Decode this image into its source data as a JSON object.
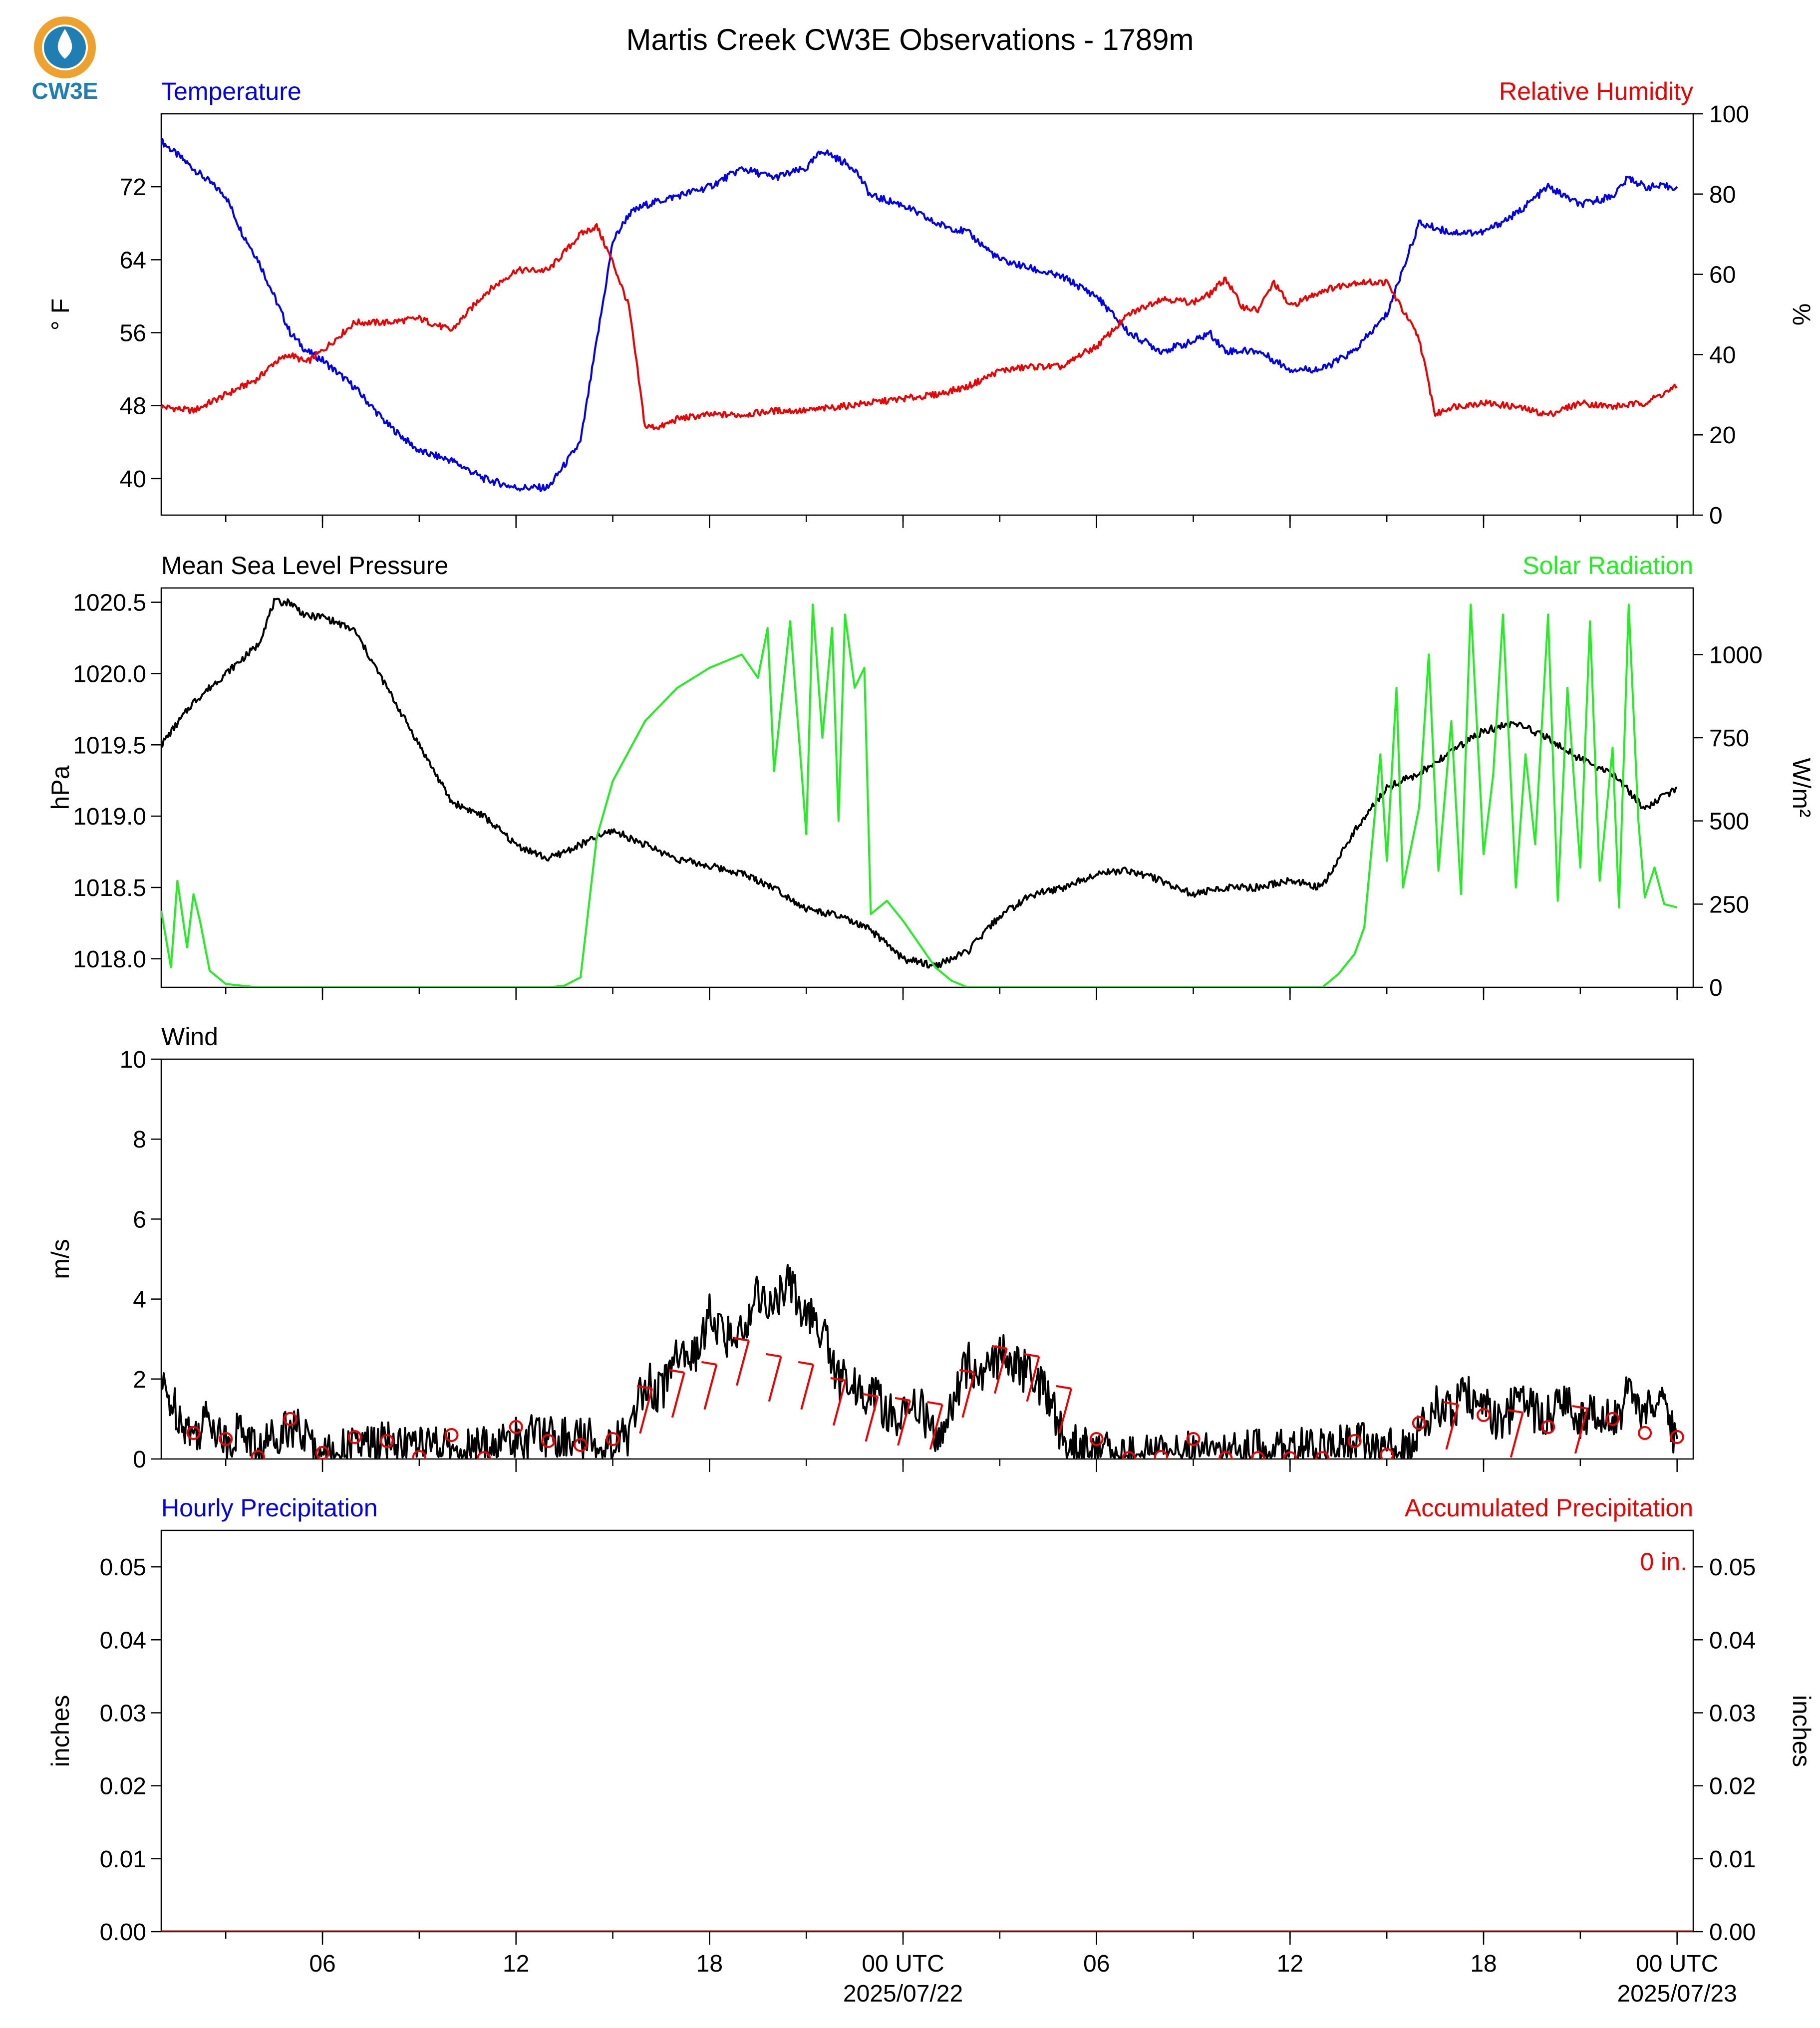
{
  "page": {
    "title": "Martis Creek CW3E Observations - 1789m",
    "logo_text": "CW3E",
    "logo_colors": {
      "ring": "#f0a12b",
      "drop": "#1f7fb5",
      "text": "#1f7fb5"
    }
  },
  "x_axis": {
    "range_hours": [
      0,
      47.5
    ],
    "ticks": [
      {
        "h": 5,
        "label": "06"
      },
      {
        "h": 11,
        "label": "12"
      },
      {
        "h": 17,
        "label": "18"
      },
      {
        "h": 23,
        "label": "00 UTC",
        "sublabel": "2025/07/22"
      },
      {
        "h": 29,
        "label": "06"
      },
      {
        "h": 35,
        "label": "12"
      },
      {
        "h": 41,
        "label": "18"
      },
      {
        "h": 47,
        "label": "00 UTC",
        "sublabel": "2025/07/23"
      }
    ],
    "minor_every_hours": 3
  },
  "chart_data": [
    {
      "type": "line",
      "panel": "temperature-humidity",
      "left_label": "Temperature",
      "right_label": "Relative Humidity",
      "ylabel_left": "° F",
      "ylabel_right": "%",
      "ylim_left": [
        36,
        80
      ],
      "ylim_right": [
        0,
        100
      ],
      "yticks_left": [
        "40",
        "48",
        "56",
        "64",
        "72"
      ],
      "yticks_right": [
        "0",
        "20",
        "40",
        "60",
        "80",
        "100"
      ],
      "series": [
        {
          "name": "Temperature",
          "color": "#0000ee",
          "axis": "left",
          "x": [
            0,
            1,
            2,
            2.5,
            3,
            3.5,
            4,
            4.5,
            5,
            6,
            7,
            8,
            9,
            10,
            11,
            12,
            13,
            14,
            14.5,
            15,
            16,
            17,
            18,
            19,
            20,
            20.5,
            21,
            21.5,
            22,
            23,
            24,
            25,
            26,
            27,
            28,
            29,
            30,
            31,
            32,
            32.5,
            33,
            34,
            35,
            36,
            37,
            38,
            39,
            40,
            41,
            42,
            43,
            44,
            45,
            45.5,
            46,
            47
          ],
          "y": [
            77,
            74,
            71,
            67,
            64,
            60,
            56,
            54,
            53,
            50,
            46,
            43,
            42,
            40,
            39,
            39,
            44,
            66,
            69,
            70,
            71,
            72,
            74,
            73,
            74,
            76,
            75,
            74,
            71,
            70,
            68,
            67,
            64,
            63,
            62,
            60,
            56,
            54,
            55,
            56,
            54,
            54,
            52,
            52,
            54,
            58,
            68,
            67,
            67,
            69,
            72,
            70,
            71,
            73,
            72,
            72
          ]
        },
        {
          "name": "Relative Humidity",
          "color": "#ee0000",
          "axis": "right",
          "x": [
            0,
            1,
            2,
            3,
            3.5,
            4,
            4.5,
            5,
            6,
            7,
            8,
            9,
            10,
            10.5,
            11,
            12,
            13,
            13.5,
            14,
            14.5,
            15,
            15.5,
            16,
            17,
            18,
            19,
            20,
            21,
            22,
            23,
            24,
            25,
            26,
            27,
            28,
            28.5,
            29,
            30,
            31,
            32,
            32.5,
            33,
            33.5,
            34,
            34.5,
            35,
            36,
            37,
            38,
            39,
            39.5,
            40,
            41,
            42,
            43,
            44,
            45,
            46,
            46.5,
            47
          ],
          "y": [
            27,
            26,
            30,
            34,
            38,
            40,
            38,
            41,
            48,
            48,
            49,
            46,
            55,
            58,
            61,
            61,
            70,
            72,
            63,
            52,
            22,
            22,
            24,
            25,
            25,
            26,
            26,
            27,
            28,
            29,
            30,
            32,
            36,
            37,
            37,
            40,
            42,
            50,
            54,
            53,
            55,
            59,
            52,
            51,
            58,
            52,
            56,
            58,
            58,
            44,
            25,
            27,
            28,
            27,
            25,
            28,
            27,
            28,
            30,
            32
          ]
        }
      ]
    },
    {
      "type": "line",
      "panel": "pressure-solar",
      "left_label": "Mean Sea Level Pressure",
      "right_label": "Solar Radiation",
      "ylabel_left": "hPa",
      "ylabel_right": "W/m²",
      "ylim_left": [
        1017.8,
        1020.6
      ],
      "ylim_right": [
        0,
        1200
      ],
      "yticks_left": [
        "1018.0",
        "1018.5",
        "1019.0",
        "1019.5",
        "1020.0",
        "1020.5"
      ],
      "yticks_right": [
        "0",
        "250",
        "500",
        "750",
        "1000"
      ],
      "series": [
        {
          "name": "Mean Sea Level Pressure",
          "color": "#000000",
          "axis": "left",
          "x": [
            0,
            1,
            2,
            3,
            3.5,
            4,
            4.5,
            5,
            6,
            7,
            8,
            9,
            10,
            11,
            12,
            13,
            14,
            15,
            16,
            17,
            18,
            19,
            20,
            21,
            22,
            23,
            24,
            25,
            26,
            27,
            28,
            29,
            30,
            31,
            32,
            33,
            34,
            35,
            36,
            37,
            38,
            39,
            40,
            41,
            42,
            43,
            44,
            45,
            46,
            47
          ],
          "y": [
            1019.5,
            1019.8,
            1020.0,
            1020.2,
            1020.5,
            1020.5,
            1020.4,
            1020.4,
            1020.3,
            1019.9,
            1019.5,
            1019.1,
            1019.0,
            1018.8,
            1018.7,
            1018.8,
            1018.9,
            1018.8,
            1018.7,
            1018.65,
            1018.6,
            1018.5,
            1018.35,
            1018.3,
            1018.2,
            1018.0,
            1017.95,
            1018.05,
            1018.3,
            1018.45,
            1018.5,
            1018.6,
            1018.62,
            1018.55,
            1018.45,
            1018.5,
            1018.5,
            1018.55,
            1018.5,
            1018.9,
            1019.2,
            1019.3,
            1019.45,
            1019.6,
            1019.65,
            1019.55,
            1019.4,
            1019.3,
            1019.05,
            1019.2
          ]
        },
        {
          "name": "Solar Radiation",
          "color": "#22ee22",
          "axis": "right",
          "x": [
            0,
            0.3,
            0.5,
            0.8,
            1.0,
            1.2,
            1.5,
            2,
            3,
            5,
            8,
            11,
            12,
            12.5,
            13,
            13.5,
            14,
            15,
            16,
            17,
            18,
            18.5,
            18.8,
            19,
            19.5,
            20,
            20.2,
            20.5,
            20.8,
            21,
            21.2,
            21.5,
            21.8,
            22,
            22.5,
            23,
            24,
            24.5,
            25,
            26,
            28,
            32,
            34,
            36,
            36.5,
            37,
            37.3,
            37.8,
            38,
            38.3,
            38.5,
            39,
            39.3,
            39.6,
            40,
            40.3,
            40.6,
            41,
            41.3,
            41.6,
            42,
            42.3,
            42.6,
            43,
            43.3,
            43.6,
            44,
            44.3,
            44.6,
            45,
            45.2,
            45.5,
            45.8,
            46,
            46.3,
            46.6,
            47
          ],
          "y": [
            230,
            60,
            320,
            120,
            280,
            200,
            50,
            10,
            0,
            0,
            0,
            0,
            0,
            5,
            30,
            450,
            620,
            800,
            900,
            960,
            1000,
            930,
            1080,
            650,
            1100,
            460,
            1150,
            750,
            1080,
            500,
            1120,
            900,
            960,
            220,
            260,
            200,
            60,
            20,
            0,
            0,
            0,
            0,
            0,
            0,
            40,
            100,
            180,
            700,
            380,
            900,
            300,
            540,
            1000,
            350,
            800,
            280,
            1150,
            400,
            640,
            1120,
            300,
            700,
            430,
            1120,
            260,
            900,
            360,
            1100,
            320,
            720,
            240,
            1150,
            500,
            270,
            360,
            250,
            240
          ]
        }
      ]
    },
    {
      "type": "line",
      "panel": "wind",
      "left_label": "Wind",
      "ylabel_left": "m/s",
      "ylim_left": [
        0,
        10
      ],
      "yticks_left": [
        "0",
        "2",
        "4",
        "6",
        "8",
        "10"
      ],
      "series": [
        {
          "name": "Wind",
          "color": "#000000",
          "axis": "left",
          "x": [
            0,
            0.5,
            1,
            1.5,
            2,
            2.5,
            3,
            3.5,
            4,
            5,
            6,
            7,
            8,
            9,
            10,
            11,
            12,
            13,
            14,
            14.5,
            15,
            15.5,
            16,
            16.5,
            17,
            17.5,
            18,
            18.5,
            19,
            19.5,
            20,
            20.5,
            21,
            21.5,
            22,
            22.5,
            23,
            23.5,
            24,
            24.5,
            25,
            25.5,
            26,
            26.5,
            27,
            27.5,
            28,
            28.5,
            29,
            30,
            31,
            32,
            33,
            34,
            35,
            36,
            37,
            38,
            38.5,
            39,
            39.5,
            40,
            40.5,
            41,
            41.5,
            42,
            42.5,
            43,
            43.5,
            44,
            44.5,
            45,
            45.5,
            46,
            46.5,
            47
          ],
          "y": [
            1.8,
            1.2,
            0.6,
            1.1,
            0.4,
            0.8,
            0.2,
            0.6,
            0.9,
            0.1,
            0.3,
            0.4,
            0.3,
            0.2,
            0.3,
            0.5,
            0.6,
            0.5,
            0.4,
            0.6,
            2.0,
            1.6,
            2.8,
            2.4,
            3.6,
            3.0,
            3.2,
            4.2,
            3.8,
            4.4,
            3.6,
            3.2,
            2.0,
            1.8,
            1.6,
            1.2,
            1.0,
            1.4,
            0.5,
            1.2,
            2.4,
            2.2,
            2.6,
            2.4,
            2.0,
            1.6,
            0.4,
            0.3,
            0.2,
            0.1,
            0.1,
            0.2,
            0.1,
            0.2,
            0.3,
            0.2,
            0.4,
            0.4,
            0.3,
            0.6,
            1.4,
            1.2,
            1.6,
            1.3,
            0.8,
            1.4,
            1.2,
            1.1,
            1.5,
            1.0,
            1.2,
            0.9,
            1.6,
            1.1,
            1.4,
            0.5
          ]
        },
        {
          "name": "Wind barbs (hourly)",
          "color": "#ee0000",
          "axis": "left",
          "x": [
            1,
            2,
            3,
            4,
            5,
            6,
            7,
            8,
            9,
            10,
            11,
            12,
            13,
            14,
            15,
            16,
            17,
            18,
            19,
            20,
            21,
            22,
            23,
            24,
            25,
            26,
            27,
            28,
            29,
            30,
            31,
            32,
            33,
            34,
            35,
            36,
            37,
            38,
            39,
            40,
            41,
            42,
            43,
            44,
            45,
            46,
            47
          ],
          "y": [
            0.65,
            0.5,
            0.05,
            1.0,
            0.15,
            0.55,
            0.45,
            0.05,
            0.6,
            0.02,
            0.8,
            0.45,
            0.35,
            0.5,
            1.2,
            1.6,
            1.8,
            2.4,
            2.0,
            1.8,
            1.4,
            1.0,
            0.9,
            0.8,
            1.6,
            2.2,
            2.0,
            1.2,
            0.5,
            0.02,
            0.05,
            0.5,
            0.02,
            0.02,
            0.02,
            0.02,
            0.45,
            0.1,
            0.9,
            0.8,
            1.1,
            0.6,
            0.8,
            0.7,
            1.0,
            0.65,
            0.55
          ],
          "calm": [
            true,
            true,
            true,
            true,
            true,
            true,
            true,
            true,
            true,
            true,
            true,
            true,
            true,
            true,
            false,
            false,
            false,
            false,
            false,
            false,
            false,
            false,
            false,
            false,
            false,
            false,
            false,
            false,
            true,
            true,
            true,
            true,
            true,
            true,
            true,
            true,
            true,
            true,
            true,
            false,
            true,
            false,
            true,
            false,
            true,
            true,
            true
          ]
        }
      ]
    },
    {
      "type": "line",
      "panel": "precipitation",
      "left_label": "Hourly Precipitation",
      "right_label": "Accumulated Precipitation",
      "ylabel_left": "inches",
      "ylabel_right": "inches",
      "ylim_left": [
        0,
        0.055
      ],
      "ylim_right": [
        0,
        0.055
      ],
      "yticks_left": [
        "0.00",
        "0.01",
        "0.02",
        "0.03",
        "0.04",
        "0.05"
      ],
      "yticks_right": [
        "0.00",
        "0.01",
        "0.02",
        "0.03",
        "0.04",
        "0.05"
      ],
      "annotation": "0 in.",
      "series": [
        {
          "name": "Hourly Precipitation",
          "color": "#0000ee",
          "axis": "left",
          "x": [
            0,
            47.5
          ],
          "y": [
            0,
            0
          ]
        },
        {
          "name": "Accumulated Precipitation",
          "color": "#aa0000",
          "axis": "right",
          "x": [
            0,
            47.5
          ],
          "y": [
            0,
            0
          ]
        }
      ]
    }
  ]
}
